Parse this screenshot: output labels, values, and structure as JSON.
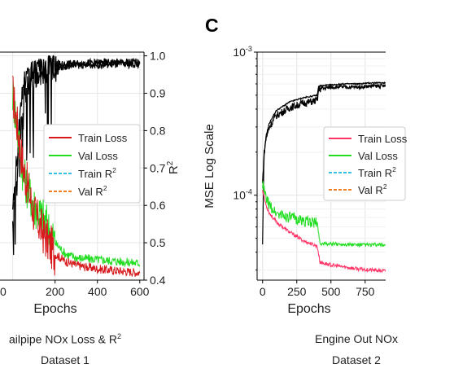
{
  "panel_letter": "C",
  "captions": {
    "left_line1": "ailpipe NOx Loss & R",
    "left_line1_sup": "2",
    "left_line2": "Dataset 1",
    "right_line1": "Engine Out NOx",
    "right_line2": "Dataset 2"
  },
  "chart_data": [
    {
      "type": "line",
      "xlabel": "Epochs",
      "ylabel_right": "R²",
      "xlim": [
        -60,
        620
      ],
      "xticks": [
        200,
        400,
        600
      ],
      "xticklabels": [
        "200",
        "400",
        "600"
      ],
      "partial_tick_label": "0",
      "y2lim": [
        0.4,
        1.01
      ],
      "y2ticks": [
        0.4,
        0.5,
        0.6,
        0.7,
        0.8,
        0.9,
        1.0
      ],
      "y2ticklabels": [
        "0.4",
        "0.5",
        "0.6",
        "0.7",
        "0.8",
        "0.9",
        "1.0"
      ],
      "grid": true,
      "legend_position": "center-right",
      "legend": [
        {
          "label": "Train Loss",
          "color": "#d7191c",
          "style": "solid"
        },
        {
          "label": "Val Loss",
          "color": "#22dd22",
          "style": "solid"
        },
        {
          "label": "Train R",
          "sup": "2",
          "color": "#35bfe0",
          "style": "dashed"
        },
        {
          "label": "Val R",
          "sup": "2",
          "color": "#ef7d22",
          "style": "dashed"
        }
      ],
      "series": [
        {
          "name": "Train Loss",
          "axis": "right",
          "x": [
            0,
            50,
            100,
            150,
            200,
            250,
            300,
            400,
            500,
            600
          ],
          "y": [
            0.9,
            0.7,
            0.58,
            0.52,
            0.47,
            0.45,
            0.44,
            0.43,
            0.425,
            0.42
          ]
        },
        {
          "name": "Val Loss",
          "axis": "right",
          "x": [
            0,
            50,
            100,
            150,
            200,
            250,
            300,
            400,
            500,
            600
          ],
          "y": [
            0.9,
            0.68,
            0.6,
            0.56,
            0.5,
            0.47,
            0.46,
            0.455,
            0.45,
            0.445
          ]
        },
        {
          "name": "Train R²",
          "axis": "right",
          "x": [
            0,
            50,
            100,
            150,
            200,
            300,
            400,
            500,
            600
          ],
          "y": [
            0.6,
            0.93,
            0.96,
            0.97,
            0.975,
            0.98,
            0.982,
            0.983,
            0.984
          ]
        },
        {
          "name": "Val R²",
          "axis": "right",
          "x": [
            0,
            50,
            100,
            150,
            200,
            300,
            400,
            500,
            600
          ],
          "y": [
            0.55,
            0.9,
            0.95,
            0.96,
            0.97,
            0.975,
            0.976,
            0.977,
            0.977
          ]
        }
      ]
    },
    {
      "type": "line",
      "xlabel": "Epochs",
      "ylabel": "MSE Log Scale",
      "yscale": "log",
      "xlim": [
        -40,
        900
      ],
      "xticks": [
        0,
        250,
        500,
        750
      ],
      "xticklabels": [
        "0",
        "250",
        "500",
        "750"
      ],
      "ylim": [
        2.55e-05,
        0.001
      ],
      "yticks": [
        0.0001,
        0.001
      ],
      "yticklabels": [
        {
          "base": "10",
          "exp": "-4"
        },
        {
          "base": "10",
          "exp": "-3"
        }
      ],
      "grid": true,
      "legend_position": "center-right",
      "legend": [
        {
          "label": "Train Loss",
          "color": "#ff3366",
          "style": "solid"
        },
        {
          "label": "Val Loss",
          "color": "#22dd22",
          "style": "solid"
        },
        {
          "label": "Train R",
          "sup": "2",
          "color": "#35bfe0",
          "style": "dashed"
        },
        {
          "label": "Val R",
          "sup": "2",
          "color": "#ef7d22",
          "style": "dashed"
        }
      ],
      "series": [
        {
          "name": "Train Loss",
          "x": [
            0,
            25,
            50,
            100,
            200,
            300,
            400,
            420,
            500,
            600,
            700,
            800,
            900
          ],
          "y": [
            0.00011,
            8.5e-05,
            7.5e-05,
            6.5e-05,
            5.5e-05,
            4.8e-05,
            4.4e-05,
            3.4e-05,
            3.25e-05,
            3.15e-05,
            3.05e-05,
            3e-05,
            2.95e-05
          ]
        },
        {
          "name": "Val Loss",
          "x": [
            0,
            25,
            50,
            100,
            200,
            300,
            400,
            420,
            500,
            600,
            700,
            800,
            900
          ],
          "y": [
            0.00012,
            9.5e-05,
            8.5e-05,
            7.5e-05,
            7e-05,
            6.6e-05,
            6.4e-05,
            4.6e-05,
            4.55e-05,
            4.55e-05,
            4.5e-05,
            4.5e-05,
            4.5e-05
          ]
        },
        {
          "name": "Train R²",
          "x": [
            0,
            10,
            25,
            50,
            100,
            200,
            300,
            400,
            410,
            500,
            600,
            700,
            800,
            900
          ],
          "y": [
            4.5e-05,
            0.00018,
            0.00026,
            0.00032,
            0.00039,
            0.00045,
            0.00048,
            0.0005,
            0.00058,
            0.00059,
            0.0006,
            0.0006,
            0.00061,
            0.00061
          ]
        },
        {
          "name": "Val R²",
          "x": [
            0,
            10,
            25,
            50,
            100,
            200,
            300,
            400,
            410,
            500,
            600,
            700,
            800,
            900
          ],
          "y": [
            0.00012,
            0.00019,
            0.00025,
            0.0003,
            0.00036,
            0.00041,
            0.00044,
            0.00046,
            0.00055,
            0.00057,
            0.00057,
            0.00057,
            0.00058,
            0.00058
          ]
        }
      ]
    }
  ]
}
